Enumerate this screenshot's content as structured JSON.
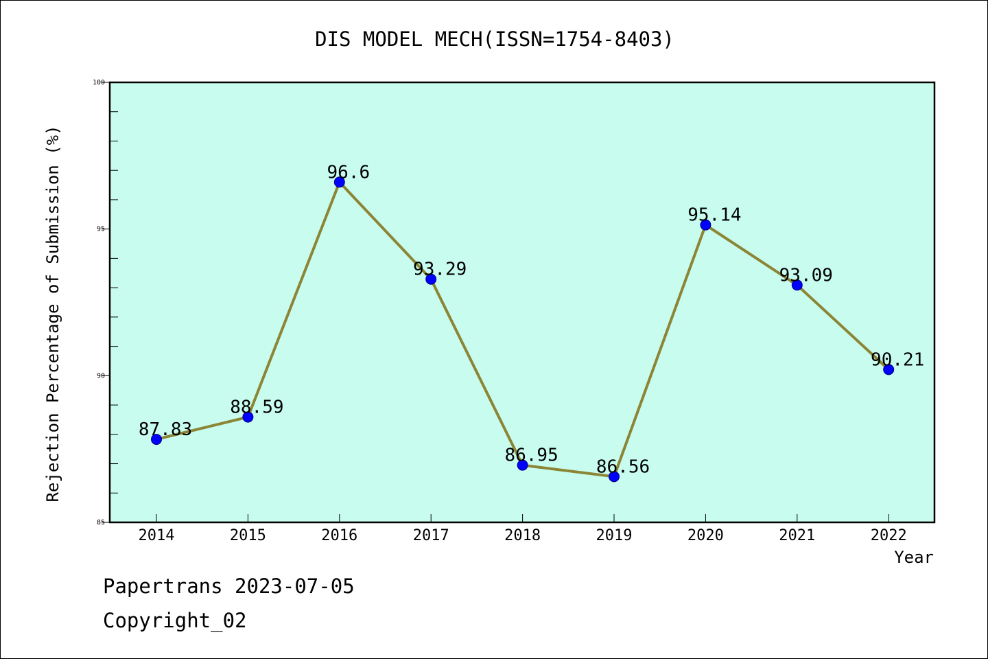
{
  "chart_data": {
    "type": "line",
    "title": "DIS MODEL MECH(ISSN=1754-8403)",
    "xlabel": "Year",
    "ylabel": "Rejection Percentage of Submission (%)",
    "categories": [
      "2014",
      "2015",
      "2016",
      "2017",
      "2018",
      "2019",
      "2020",
      "2021",
      "2022"
    ],
    "series": [
      {
        "values": [
          87.83,
          88.59,
          96.6,
          93.29,
          86.95,
          86.56,
          95.14,
          93.09,
          90.21
        ]
      }
    ],
    "data_labels": [
      "87.83",
      "88.59",
      "96.6",
      "93.29",
      "86.95",
      "86.56",
      "95.14",
      "93.09",
      "90.21"
    ],
    "ylim": [
      85,
      100
    ],
    "yticks": [
      85,
      90,
      95,
      100
    ],
    "ytick_labels": [
      "85",
      "90",
      "95",
      "100"
    ],
    "grid": false,
    "legend": "none",
    "colors": {
      "plot_background": "#c8fcee",
      "line": "#8b8535",
      "marker": "#0000ff",
      "marker_edge": "#00007f"
    }
  },
  "footer": {
    "line1": "Papertrans 2023-07-05",
    "line2": "Copyright_02"
  }
}
